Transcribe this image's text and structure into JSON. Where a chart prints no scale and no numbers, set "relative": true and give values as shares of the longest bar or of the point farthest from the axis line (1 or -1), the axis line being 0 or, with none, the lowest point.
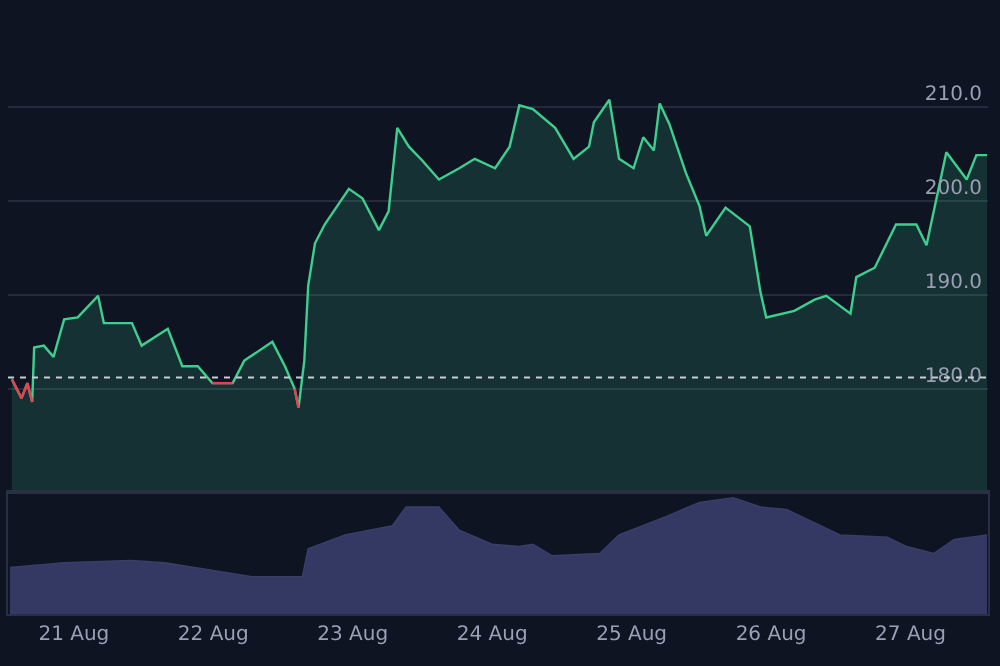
{
  "chart_data": [
    {
      "type": "area",
      "x": [
        "--08-20T13:20",
        "--08-20T15:00",
        "--08-20T16:00",
        "--08-20T16:50",
        "--08-20T17:10",
        "--08-20T18:50",
        "--08-20T20:30",
        "--08-20T22:20",
        "--08-21T00:40",
        "--08-21T04:10",
        "--08-21T05:10",
        "--08-21T10:00",
        "--08-21T11:40",
        "--08-21T16:10",
        "--08-21T18:40",
        "--08-21T21:20",
        "--08-21T23:50",
        "--08-22T03:20",
        "--08-22T05:20",
        "--08-22T10:10",
        "--08-22T12:20",
        "--08-22T14:00",
        "--08-22T14:40",
        "--08-22T15:40",
        "--08-22T16:20",
        "--08-22T17:30",
        "--08-22T19:10",
        "--08-22T23:20",
        "--08-23T01:40",
        "--08-23T04:30",
        "--08-23T06:10",
        "--08-23T07:40",
        "--08-23T09:40",
        "--08-23T12:00",
        "--08-23T14:50",
        "--08-23T18:20",
        "--08-23T21:00",
        "--08-24T00:30",
        "--08-24T03:00",
        "--08-24T04:40",
        "--08-24T07:00",
        "--08-24T10:50",
        "--08-24T14:00",
        "--08-24T16:40",
        "--08-24T17:30",
        "--08-24T20:10",
        "--08-24T21:50",
        "--08-25T00:20",
        "--08-25T02:00",
        "--08-25T03:50",
        "--08-25T04:50",
        "--08-25T06:30",
        "--08-25T09:20",
        "--08-25T11:40",
        "--08-25T12:50",
        "--08-25T16:10",
        "--08-25T20:20",
        "--08-25T22:10",
        "--08-25T23:10",
        "--08-26T04:00",
        "--08-26T07:30",
        "--08-26T09:30",
        "--08-26T13:40",
        "--08-26T14:40",
        "--08-26T17:50",
        "--08-26T21:30",
        "--08-27T01:00",
        "--08-27T02:45",
        "--08-27T06:10",
        "--08-27T09:40",
        "--08-27T11:20",
        "--08-27T13:10"
      ],
      "series": [
        {
          "color": "#3ecf8e",
          "values": [
            181.0,
            179.0,
            180.6,
            178.6,
            184.4,
            184.6,
            183.4,
            187.4,
            187.6,
            189.9,
            187.0,
            187.0,
            184.6,
            186.4,
            182.4,
            182.4,
            180.6,
            180.6,
            183.0,
            185.0,
            182.4,
            180.0,
            178.0,
            183.0,
            191.0,
            195.5,
            197.5,
            201.3,
            200.3,
            196.9,
            198.9,
            207.8,
            205.8,
            204.3,
            202.3,
            203.5,
            204.5,
            203.5,
            205.8,
            210.2,
            209.8,
            207.8,
            204.5,
            205.8,
            208.4,
            210.8,
            204.5,
            203.5,
            206.8,
            205.4,
            210.4,
            208.2,
            203.0,
            199.5,
            196.3,
            199.3,
            197.3,
            190.3,
            187.6,
            188.3,
            189.5,
            189.9,
            188.0,
            191.9,
            192.9,
            197.5,
            197.5,
            195.3,
            205.2,
            202.3,
            204.9,
            204.9
          ]
        },
        {
          "type": "line",
          "color": "#e5414f",
          "values": [
            181.0,
            179.0,
            180.6,
            178.6,
            null,
            null,
            null,
            null,
            null,
            null,
            null,
            null,
            null,
            null,
            null,
            null,
            180.6,
            180.6,
            null,
            null,
            null,
            180.0,
            178.0,
            null,
            null,
            null,
            null,
            null,
            null,
            null,
            null,
            null,
            null,
            null,
            null,
            null,
            null,
            null,
            null,
            null,
            null,
            null,
            null,
            null,
            null,
            null,
            null,
            null,
            null,
            null,
            null,
            null,
            null,
            null,
            null,
            null,
            null,
            null,
            null,
            null,
            null,
            null,
            null,
            null,
            null,
            null,
            null,
            null,
            null,
            null,
            null,
            null
          ]
        }
      ],
      "xlim": [
        "--08-20T12:40",
        "--08-27T13:20"
      ],
      "ylim": [
        169,
        221
      ],
      "yticks": [
        {
          "value": 180,
          "label": "180.0"
        },
        {
          "value": 190,
          "label": "190.0"
        },
        {
          "value": 200,
          "label": "200.0"
        },
        {
          "value": 210,
          "label": "210.0"
        }
      ],
      "ref_lines": [
        {
          "axis": "y",
          "value": 181.2,
          "color": "#c8ccd8",
          "line_style": "dotted"
        }
      ],
      "grid": "y",
      "tick_labels": "y"
    },
    {
      "type": "area",
      "relative": true,
      "color": "#383d6a",
      "x": [
        "--08-20T13:00",
        "--08-20T22:20",
        "--08-21T09:50",
        "--08-21T15:40",
        "--08-22T06:40",
        "--08-22T15:20",
        "--08-22T16:20",
        "--08-22T22:40",
        "--08-23T06:50",
        "--08-23T09:10",
        "--08-23T14:50",
        "--08-23T18:20",
        "--08-24T00:00",
        "--08-24T04:40",
        "--08-24T07:00",
        "--08-24T10:20",
        "--08-24T18:30",
        "--08-24T21:50",
        "--08-25T06:00",
        "--08-25T11:40",
        "--08-25T17:30",
        "--08-25T22:10",
        "--08-26T02:40",
        "--08-26T11:50",
        "--08-26T20:00",
        "--08-26T23:20",
        "--08-27T04:00",
        "--08-27T07:30",
        "--08-27T13:10"
      ],
      "values": [
        0.4,
        0.44,
        0.46,
        0.44,
        0.32,
        0.32,
        0.56,
        0.68,
        0.76,
        0.92,
        0.92,
        0.72,
        0.6,
        0.58,
        0.6,
        0.5,
        0.52,
        0.68,
        0.84,
        0.96,
        1.0,
        0.92,
        0.9,
        0.68,
        0.66,
        0.58,
        0.52,
        0.64,
        0.68
      ],
      "xlim": [
        "--08-20T12:40",
        "--08-27T13:20"
      ],
      "xticks": [
        {
          "value": "--08-21",
          "label": "21 Aug"
        },
        {
          "value": "--08-22",
          "label": "22 Aug"
        },
        {
          "value": "--08-23",
          "label": "23 Aug"
        },
        {
          "value": "--08-24",
          "label": "24 Aug"
        },
        {
          "value": "--08-25",
          "label": "25 Aug"
        },
        {
          "value": "--08-26",
          "label": "26 Aug"
        },
        {
          "value": "--08-27",
          "label": "27 Aug"
        }
      ],
      "tick_labels": "x",
      "grid": false
    }
  ]
}
